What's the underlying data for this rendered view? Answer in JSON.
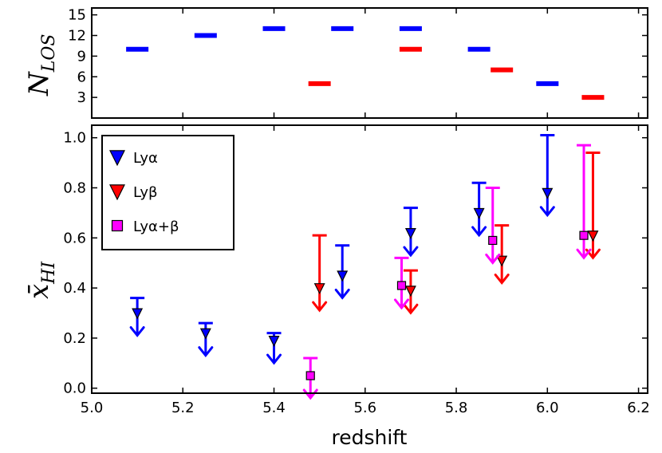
{
  "chart_data": [
    {
      "type": "scatter",
      "panel": "top",
      "ylabel": "N_LOS",
      "ylabel_main": "N",
      "ylabel_sub": "LOS",
      "ylim": [
        0,
        16
      ],
      "yticks": [
        3,
        6,
        9,
        12,
        15
      ],
      "xlim": [
        5.0,
        6.22
      ],
      "marker": "horizontal-dash",
      "series": [
        {
          "name": "Lyα",
          "color": "#0000ff",
          "x": [
            5.1,
            5.25,
            5.4,
            5.55,
            5.7,
            5.85,
            6.0
          ],
          "values": [
            10,
            12,
            13,
            13,
            13,
            10,
            5
          ]
        },
        {
          "name": "Lyβ",
          "color": "#ff0000",
          "x": [
            5.5,
            5.7,
            5.9,
            6.1
          ],
          "values": [
            5,
            10,
            7,
            3
          ]
        }
      ]
    },
    {
      "type": "scatter",
      "panel": "bottom",
      "xlabel": "redshift",
      "ylabel": "x̄_HI",
      "ylabel_main": "x̄",
      "ylabel_sub": "HI",
      "xlim": [
        5.0,
        6.22
      ],
      "ylim": [
        -0.02,
        1.05
      ],
      "xticks": [
        "5.0",
        "5.2",
        "5.4",
        "5.6",
        "5.8",
        "6.0",
        "6.2"
      ],
      "yticks": [
        "0.0",
        "0.2",
        "0.4",
        "0.6",
        "0.8",
        "1.0"
      ],
      "note": "upper limits: marker at measured value, cap line at upper bound, arrow pointing down",
      "series": [
        {
          "name": "Lyα",
          "color": "#0000ff",
          "marker": "triangle-down",
          "x": [
            5.1,
            5.25,
            5.4,
            5.55,
            5.7,
            5.85,
            6.0
          ],
          "values": [
            0.3,
            0.22,
            0.19,
            0.45,
            0.62,
            0.7,
            0.78
          ],
          "upper": [
            0.36,
            0.26,
            0.22,
            0.57,
            0.72,
            0.82,
            1.01
          ]
        },
        {
          "name": "Lyβ",
          "color": "#ff0000",
          "marker": "triangle-down",
          "x": [
            5.5,
            5.7,
            5.9,
            6.1
          ],
          "values": [
            0.4,
            0.39,
            0.51,
            0.61
          ],
          "upper": [
            0.61,
            0.47,
            0.65,
            0.94
          ]
        },
        {
          "name": "Lyα+β",
          "color": "#ff00ff",
          "marker": "square",
          "x": [
            5.48,
            5.68,
            5.88,
            6.08
          ],
          "values": [
            0.05,
            0.41,
            0.59,
            0.61
          ],
          "upper": [
            0.12,
            0.52,
            0.8,
            0.97
          ]
        }
      ],
      "legend": {
        "placement": "top-left",
        "entries": [
          {
            "label": "Lyα",
            "color": "#0000ff",
            "marker": "triangle-down"
          },
          {
            "label": "Lyβ",
            "color": "#ff0000",
            "marker": "triangle-down"
          },
          {
            "label": "Lyα+β",
            "color": "#ff00ff",
            "marker": "square"
          }
        ]
      }
    }
  ]
}
